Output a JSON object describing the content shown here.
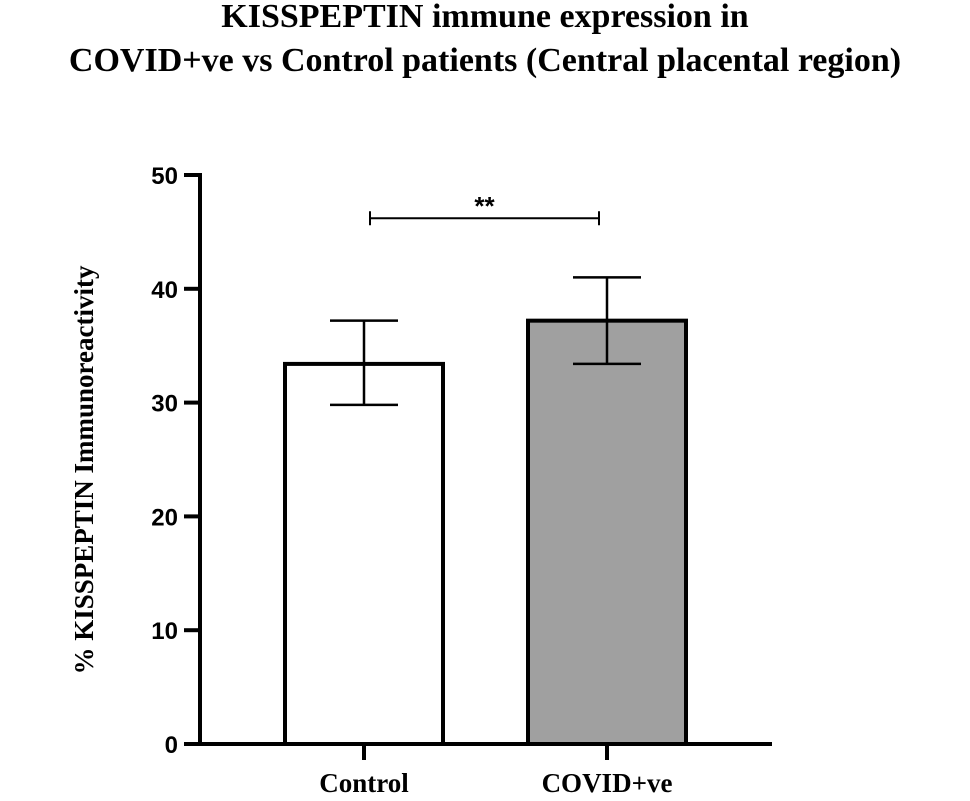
{
  "chart_data": {
    "type": "bar",
    "title_lines": [
      "KISSPEPTIN immune expression in",
      "COVID+ve vs Control patients (Central placental region)"
    ],
    "xlabel": "",
    "ylabel": "% KISSPEPTIN Immunoreactivity",
    "categories": [
      "Control",
      "COVID+ve"
    ],
    "values": [
      33.4,
      37.2
    ],
    "error_upper": [
      37.2,
      41.0
    ],
    "error_lower": [
      29.8,
      33.4
    ],
    "bar_colors": [
      "#ffffff",
      "#a0a0a0"
    ],
    "ylim": [
      0,
      50
    ],
    "yticks": [
      0,
      10,
      20,
      30,
      40,
      50
    ],
    "grid": false,
    "significance": {
      "from": "Control",
      "to": "COVID+ve",
      "y": 46.2,
      "label": "**"
    }
  }
}
